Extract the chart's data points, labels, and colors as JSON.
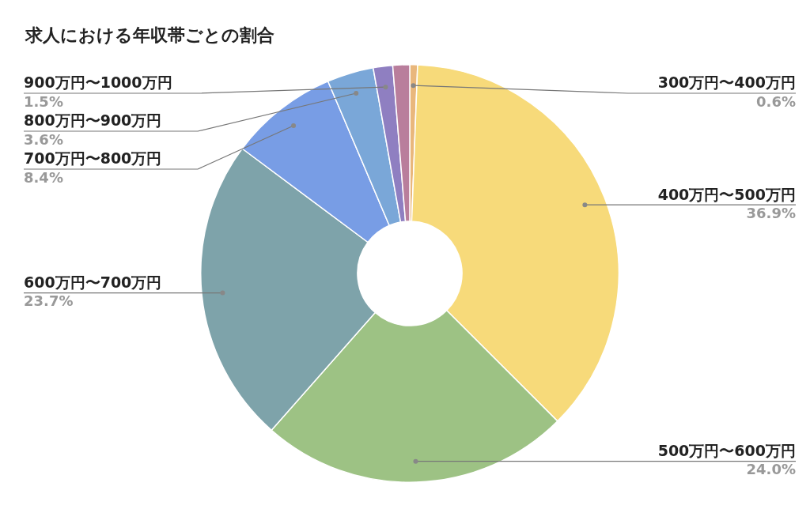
{
  "chart_data": {
    "type": "donut",
    "title": "求人における年収帯ごとの割合",
    "categories": [
      "300万円〜400万円",
      "400万円〜500万円",
      "500万円〜600万円",
      "600万円〜700万円",
      "700万円〜800万円",
      "800万円〜900万円",
      "900万円〜1000万円",
      null
    ],
    "values": [
      0.6,
      36.9,
      24.0,
      23.7,
      8.4,
      3.6,
      1.5,
      1.3
    ],
    "colors": [
      "#e9b77c",
      "#f7da7a",
      "#9dc284",
      "#7ea3aa",
      "#789de5",
      "#7aa7d8",
      "#8f7fc1",
      "#b97e9c"
    ],
    "value_labels": [
      "0.6%",
      "36.9%",
      "24.0%",
      "23.7%",
      "8.4%",
      "3.6%",
      "1.5%",
      null
    ],
    "legend": false
  }
}
